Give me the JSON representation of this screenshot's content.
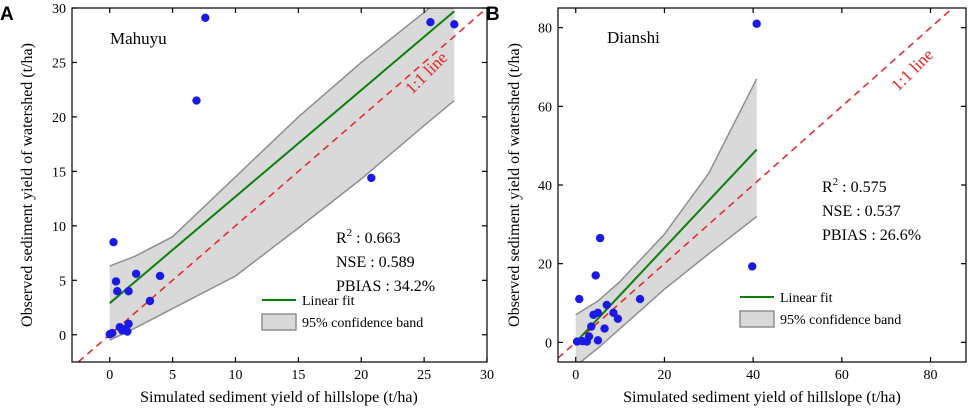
{
  "chart_data": [
    {
      "type": "scatter",
      "panel": "A",
      "site": "Mahuyu",
      "xlabel": "Simulated sediment yield of hillslope (t/ha)",
      "ylabel": "Observed sediment yield of watershed (t/ha)",
      "xlim": [
        -3,
        30
      ],
      "ylim": [
        -2.5,
        30
      ],
      "xticks": [
        0,
        5,
        10,
        15,
        20,
        25,
        30
      ],
      "yticks": [
        0,
        5,
        10,
        15,
        20,
        25,
        30
      ],
      "points": [
        {
          "x": 0.0,
          "y": 0.05
        },
        {
          "x": 0.1,
          "y": 0.1
        },
        {
          "x": 0.2,
          "y": 0.15
        },
        {
          "x": 0.3,
          "y": 8.5
        },
        {
          "x": 0.5,
          "y": 4.9
        },
        {
          "x": 0.6,
          "y": 4.0
        },
        {
          "x": 0.8,
          "y": 0.7
        },
        {
          "x": 1.0,
          "y": 0.4
        },
        {
          "x": 1.2,
          "y": 0.5
        },
        {
          "x": 1.4,
          "y": 0.3
        },
        {
          "x": 1.5,
          "y": 1.0
        },
        {
          "x": 1.5,
          "y": 4.0
        },
        {
          "x": 2.1,
          "y": 5.6
        },
        {
          "x": 3.2,
          "y": 3.1
        },
        {
          "x": 4.0,
          "y": 5.4
        },
        {
          "x": 6.9,
          "y": 21.5
        },
        {
          "x": 7.6,
          "y": 29.1
        },
        {
          "x": 20.8,
          "y": 14.4
        },
        {
          "x": 25.5,
          "y": 28.7
        },
        {
          "x": 27.4,
          "y": 28.5
        }
      ],
      "linear_fit": {
        "x": [
          0,
          27.4
        ],
        "y": [
          2.9,
          29.7
        ]
      },
      "band_upper": {
        "x": [
          0,
          2,
          5,
          10,
          15,
          20,
          25,
          27.4
        ],
        "y": [
          6.3,
          7.2,
          9.0,
          14.5,
          20.0,
          25.0,
          29.6,
          32.0
        ]
      },
      "band_lower": {
        "x": [
          0,
          2,
          5,
          10,
          15,
          20,
          25,
          27.4
        ],
        "y": [
          -0.5,
          0.6,
          2.4,
          5.4,
          9.8,
          14.3,
          19.2,
          21.5
        ]
      },
      "one_to_one_label": "1:1 line",
      "stats": {
        "r2_label": "R",
        "r2_sup": "2",
        "r2_value": " : 0.663",
        "nse": "NSE : 0.589",
        "pbias": "PBIAS : 34.2%"
      },
      "legend": {
        "fit": "Linear fit",
        "band": "95% confidence band"
      }
    },
    {
      "type": "scatter",
      "panel": "B",
      "site": "Dianshi",
      "xlabel": "Simulated sediment yield of hillslope (t/ha)",
      "ylabel": "Observed sediment yield of watershed (t/ha)",
      "xlim": [
        -4,
        88
      ],
      "ylim": [
        -5,
        85
      ],
      "xticks": [
        0,
        20,
        40,
        60,
        80
      ],
      "yticks": [
        0,
        20,
        40,
        60,
        80
      ],
      "points": [
        {
          "x": 0.3,
          "y": 0.2
        },
        {
          "x": 0.8,
          "y": 11.0
        },
        {
          "x": 1.5,
          "y": 0.3
        },
        {
          "x": 2.5,
          "y": 0.2
        },
        {
          "x": 3.0,
          "y": 1.5
        },
        {
          "x": 3.5,
          "y": 4.0
        },
        {
          "x": 4.0,
          "y": 7.0
        },
        {
          "x": 4.5,
          "y": 17.0
        },
        {
          "x": 5.0,
          "y": 7.5
        },
        {
          "x": 5.0,
          "y": 0.5
        },
        {
          "x": 5.5,
          "y": 26.5
        },
        {
          "x": 6.5,
          "y": 3.5
        },
        {
          "x": 7.0,
          "y": 9.5
        },
        {
          "x": 8.5,
          "y": 7.5
        },
        {
          "x": 9.5,
          "y": 6.0
        },
        {
          "x": 14.5,
          "y": 11.0
        },
        {
          "x": 39.8,
          "y": 19.3
        },
        {
          "x": 40.8,
          "y": 81.0
        }
      ],
      "linear_fit": {
        "x": [
          0,
          40.8
        ],
        "y": [
          0.0,
          49.0
        ]
      },
      "band_upper": {
        "x": [
          0,
          5,
          10,
          20,
          30,
          40.8
        ],
        "y": [
          7.0,
          10.5,
          15.5,
          27.5,
          43.0,
          67.0
        ]
      },
      "band_lower": {
        "x": [
          0,
          5,
          10,
          20,
          30,
          40.8
        ],
        "y": [
          -6.0,
          -1.5,
          3.5,
          13.5,
          22.5,
          32.0
        ]
      },
      "one_to_one_label": "1:1 line",
      "stats": {
        "r2_label": "R",
        "r2_sup": "2",
        "r2_value": " : 0.575",
        "nse": "NSE : 0.537",
        "pbias": "PBIAS : 26.6%"
      },
      "legend": {
        "fit": "Linear fit",
        "band": "95% confidence band"
      }
    }
  ],
  "colors": {
    "points": "#1a1ae6",
    "fit": "#0c7f0c",
    "band_fill": "#d9d9d9",
    "band_edge": "#8f8f8f",
    "one_to_one": "#e8231f"
  }
}
